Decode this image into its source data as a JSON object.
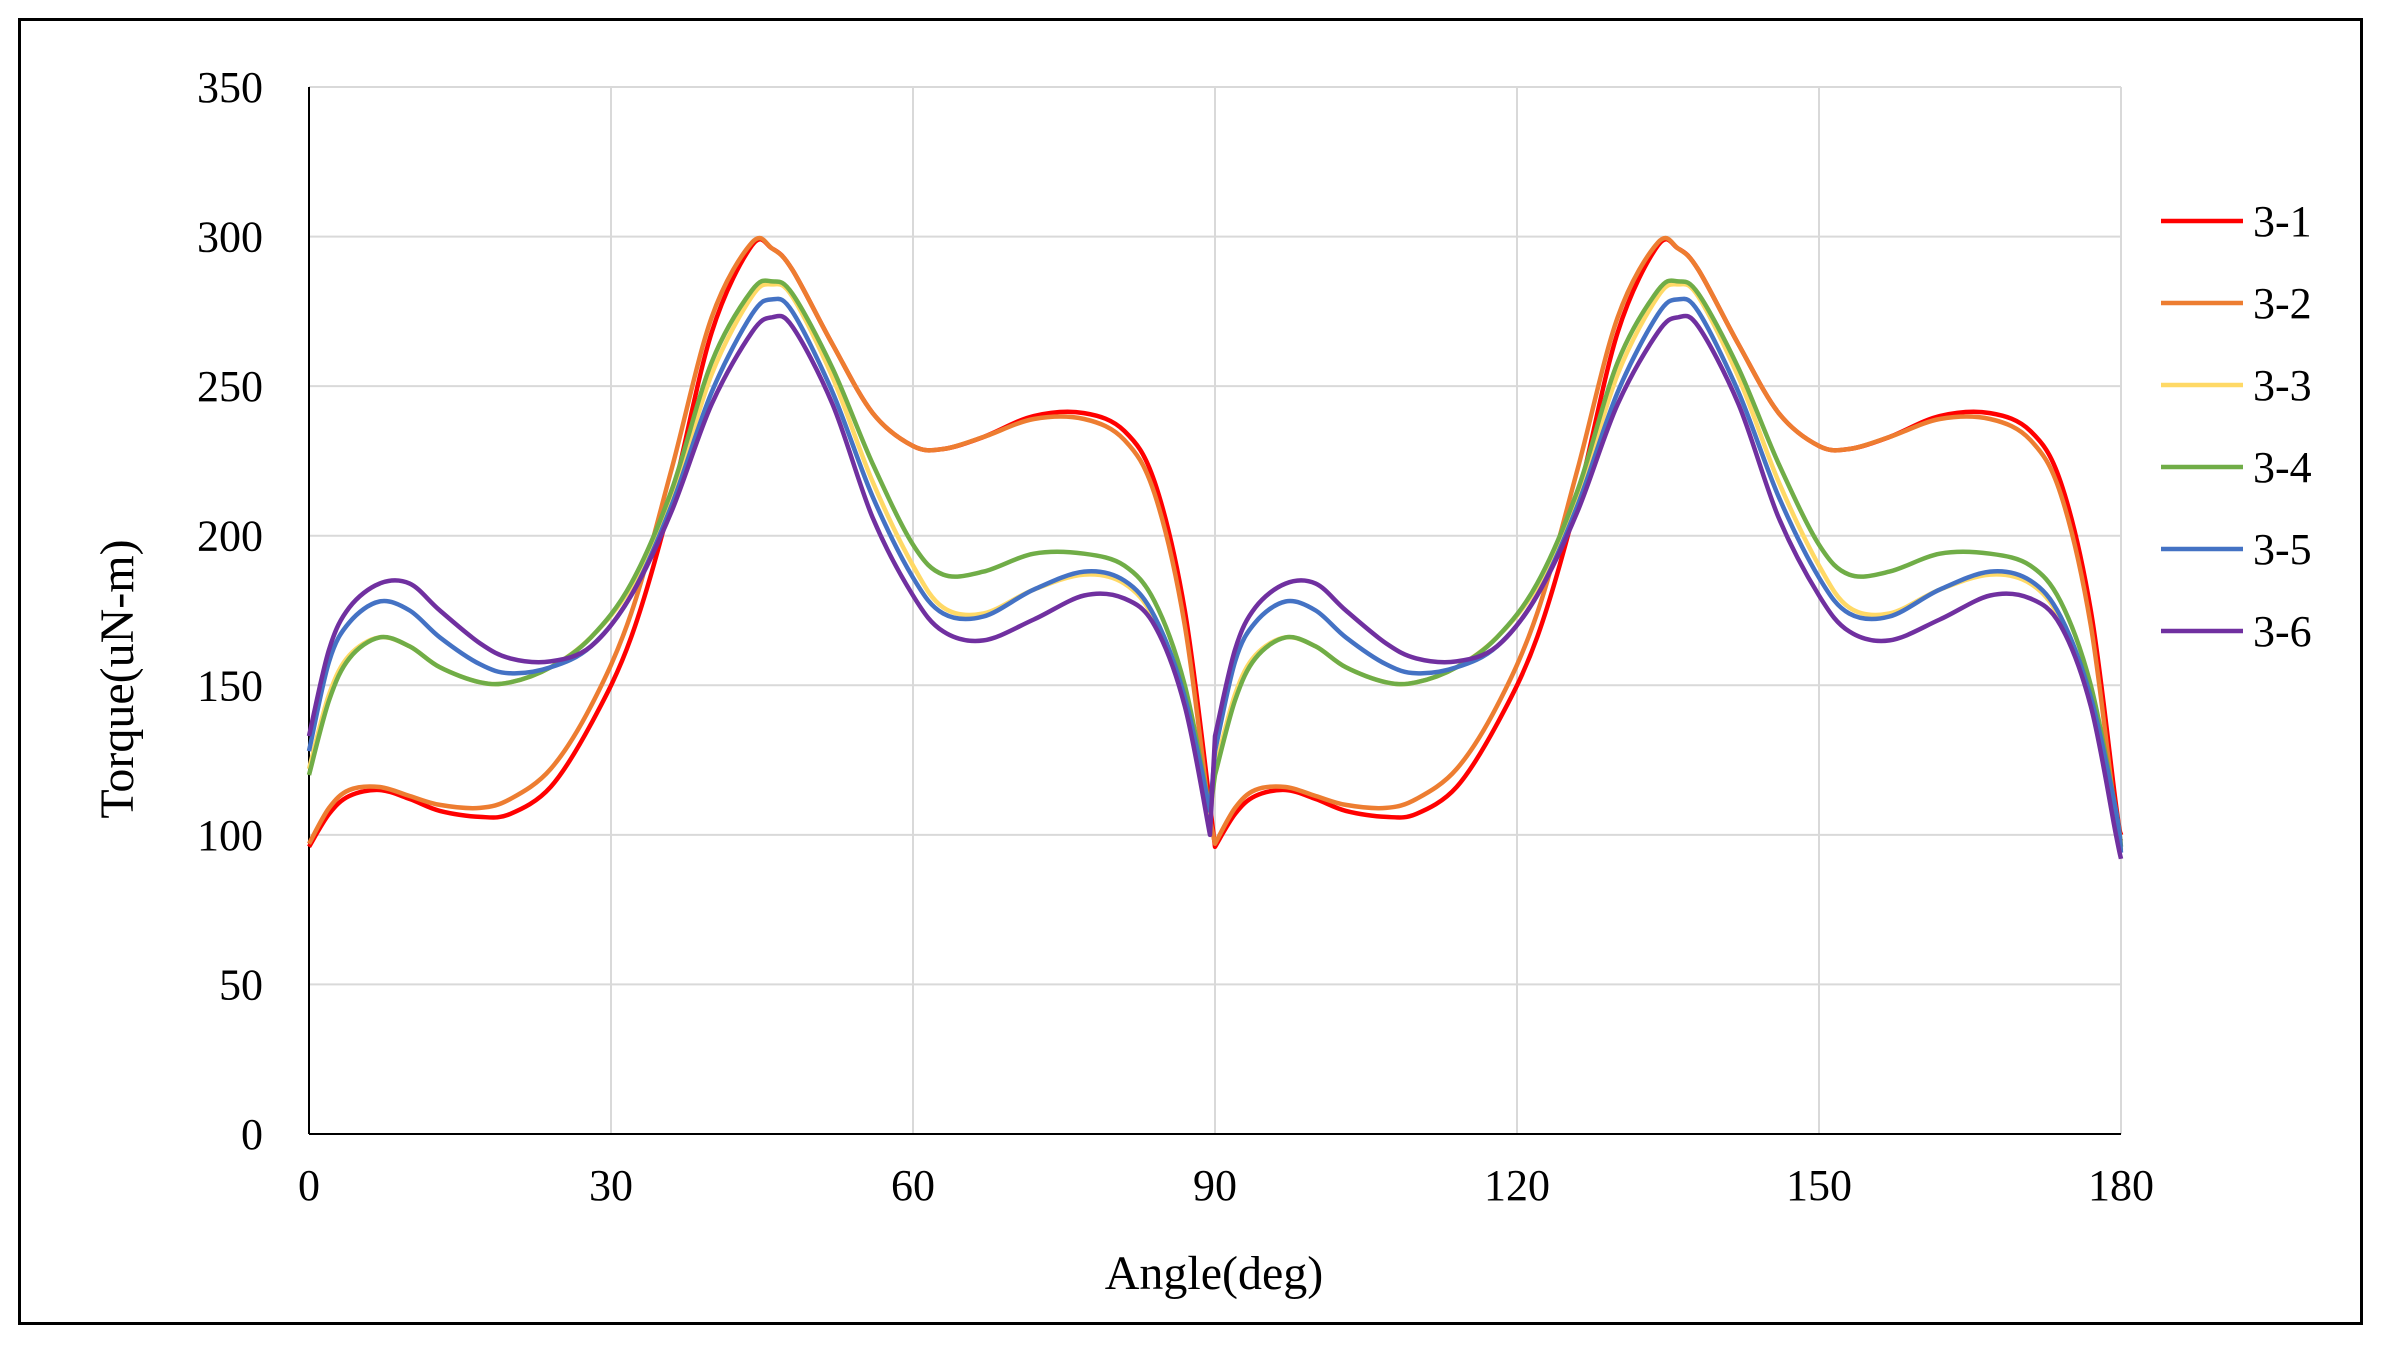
{
  "chart_data": {
    "type": "line",
    "title": "",
    "xlabel": "Angle(deg)",
    "ylabel": "Torque(uN-m)",
    "xlim": [
      0,
      180
    ],
    "ylim": [
      0,
      350
    ],
    "xticks": [
      0,
      30,
      60,
      90,
      120,
      150,
      180
    ],
    "yticks": [
      0,
      50,
      100,
      150,
      200,
      250,
      300,
      350
    ],
    "grid": true,
    "legend_position": "right",
    "x": [
      0,
      2,
      4,
      7,
      10,
      13,
      17,
      20,
      24,
      28,
      32,
      36,
      40,
      44,
      46,
      48,
      52,
      56,
      60,
      63,
      67,
      72,
      77,
      81,
      84,
      87,
      89.5,
      90,
      92,
      94,
      97,
      100,
      103,
      107,
      110,
      114,
      118,
      122,
      126,
      130,
      134,
      136,
      138,
      142,
      146,
      150,
      153,
      157,
      162,
      167,
      171,
      174,
      177,
      179.5,
      180
    ],
    "series": [
      {
        "name": "3-1",
        "color": "#ff0000",
        "values": [
          96,
          107,
          113,
          115,
          112,
          108,
          106,
          107,
          116,
          137,
          166,
          212,
          268,
          297,
          296,
          289,
          264,
          241,
          230,
          229,
          233,
          240,
          241,
          235,
          218,
          175,
          110,
          96,
          107,
          113,
          115,
          112,
          108,
          106,
          107,
          116,
          137,
          166,
          212,
          268,
          297,
          296,
          289,
          264,
          241,
          230,
          229,
          233,
          240,
          241,
          235,
          218,
          175,
          110,
          100
        ]
      },
      {
        "name": "3-2",
        "color": "#ed7d31",
        "values": [
          97,
          109,
          115,
          116,
          113,
          110,
          109,
          112,
          122,
          143,
          174,
          222,
          273,
          298,
          296,
          289,
          264,
          241,
          230,
          229,
          233,
          239,
          239,
          232,
          214,
          170,
          105,
          97,
          109,
          115,
          116,
          113,
          110,
          109,
          112,
          122,
          143,
          174,
          222,
          273,
          298,
          296,
          289,
          264,
          241,
          230,
          229,
          233,
          239,
          239,
          232,
          214,
          170,
          105,
          98
        ]
      },
      {
        "name": "3-3",
        "color": "#ffd966",
        "values": [
          122,
          147,
          160,
          166,
          163,
          156,
          151,
          151,
          156,
          166,
          183,
          212,
          254,
          280,
          284,
          280,
          253,
          218,
          190,
          176,
          174,
          182,
          187,
          184,
          172,
          145,
          105,
          122,
          147,
          160,
          166,
          163,
          156,
          151,
          151,
          156,
          166,
          183,
          212,
          254,
          280,
          284,
          280,
          253,
          218,
          190,
          176,
          174,
          182,
          187,
          184,
          172,
          145,
          105,
          95
        ]
      },
      {
        "name": "3-4",
        "color": "#70ad47",
        "values": [
          120,
          145,
          159,
          166,
          163,
          156,
          151,
          151,
          156,
          166,
          184,
          215,
          258,
          282,
          285,
          281,
          256,
          224,
          197,
          187,
          188,
          194,
          194,
          190,
          178,
          150,
          108,
          120,
          145,
          159,
          166,
          163,
          156,
          151,
          151,
          156,
          166,
          184,
          215,
          258,
          282,
          285,
          281,
          256,
          224,
          197,
          187,
          188,
          194,
          194,
          190,
          178,
          150,
          108,
          96
        ]
      },
      {
        "name": "3-5",
        "color": "#4472c4",
        "values": [
          128,
          158,
          171,
          178,
          175,
          166,
          157,
          154,
          156,
          163,
          180,
          210,
          248,
          274,
          279,
          275,
          248,
          213,
          186,
          174,
          173,
          182,
          188,
          185,
          173,
          146,
          108,
          128,
          158,
          171,
          178,
          175,
          166,
          157,
          154,
          156,
          163,
          180,
          210,
          248,
          274,
          279,
          275,
          248,
          213,
          186,
          174,
          173,
          182,
          188,
          185,
          173,
          146,
          108,
          94
        ]
      },
      {
        "name": "3-6",
        "color": "#7030a0",
        "values": [
          133,
          162,
          176,
          184,
          184,
          175,
          164,
          159,
          158,
          163,
          180,
          208,
          244,
          268,
          273,
          270,
          244,
          206,
          180,
          168,
          165,
          172,
          180,
          179,
          170,
          143,
          100,
          133,
          162,
          176,
          184,
          184,
          175,
          164,
          159,
          158,
          163,
          180,
          208,
          244,
          268,
          273,
          270,
          244,
          206,
          180,
          168,
          165,
          172,
          180,
          179,
          170,
          143,
          100,
          92
        ]
      }
    ]
  }
}
